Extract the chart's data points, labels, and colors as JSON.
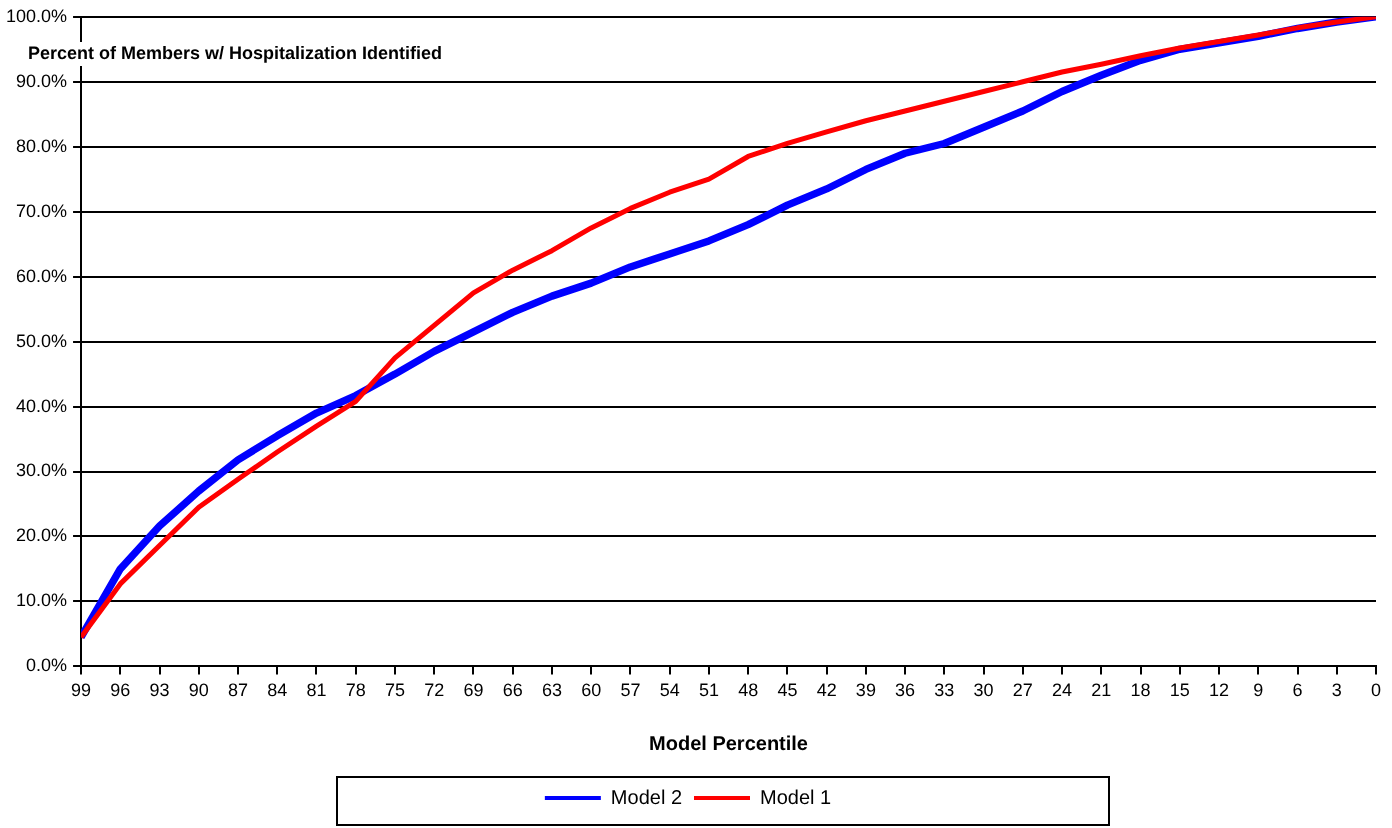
{
  "chart_data": {
    "type": "line",
    "xlabel": "Model Percentile",
    "ylabel": "Percent of Members w/ Hospitalization Identified",
    "x": [
      99,
      96,
      93,
      90,
      87,
      84,
      81,
      78,
      75,
      72,
      69,
      66,
      63,
      60,
      57,
      54,
      51,
      48,
      45,
      42,
      39,
      36,
      33,
      30,
      27,
      24,
      21,
      18,
      15,
      12,
      9,
      6,
      3,
      0
    ],
    "xlim": [
      99,
      0
    ],
    "xticks": [
      99,
      96,
      93,
      90,
      87,
      84,
      81,
      78,
      75,
      72,
      69,
      66,
      63,
      60,
      57,
      54,
      51,
      48,
      45,
      42,
      39,
      36,
      33,
      30,
      27,
      24,
      21,
      18,
      15,
      12,
      9,
      6,
      3,
      0
    ],
    "ylim": [
      0,
      100
    ],
    "yticks": [
      {
        "value": 0,
        "label": "0.0%"
      },
      {
        "value": 10,
        "label": "10.0%"
      },
      {
        "value": 20,
        "label": "20.0%"
      },
      {
        "value": 30,
        "label": "30.0%"
      },
      {
        "value": 40,
        "label": "40.0%"
      },
      {
        "value": 50,
        "label": "50.0%"
      },
      {
        "value": 60,
        "label": "60.0%"
      },
      {
        "value": 70,
        "label": "70.0%"
      },
      {
        "value": 80,
        "label": "80.0%"
      },
      {
        "value": 90,
        "label": "90.0%"
      },
      {
        "value": 100,
        "label": "100.0%"
      }
    ],
    "series": [
      {
        "name": "Model 2",
        "color": "#0000ff",
        "values": [
          4.5,
          15,
          21.6,
          27,
          31.8,
          35.5,
          39,
          41.7,
          45,
          48.5,
          51.5,
          54.5,
          57,
          59,
          61.5,
          63.5,
          65.5,
          68,
          71,
          73.5,
          76.5,
          79,
          80.5,
          83,
          85.5,
          88.5,
          91,
          93.3,
          95,
          96,
          97,
          98.2,
          99.2,
          100
        ]
      },
      {
        "name": "Model 1",
        "color": "#ff0000",
        "values": [
          4.5,
          12.7,
          18.6,
          24.5,
          28.8,
          33,
          37,
          40.8,
          47.5,
          52.5,
          57.5,
          61,
          64,
          67.5,
          70.5,
          73,
          75,
          78.5,
          80.5,
          82.3,
          84,
          85.5,
          87,
          88.5,
          90,
          91.5,
          92.7,
          94,
          95.2,
          96.2,
          97.2,
          98.3,
          99.2,
          100
        ]
      }
    ],
    "grid": "y",
    "legend": "bottom",
    "marker": "none",
    "line_style": "solid"
  }
}
